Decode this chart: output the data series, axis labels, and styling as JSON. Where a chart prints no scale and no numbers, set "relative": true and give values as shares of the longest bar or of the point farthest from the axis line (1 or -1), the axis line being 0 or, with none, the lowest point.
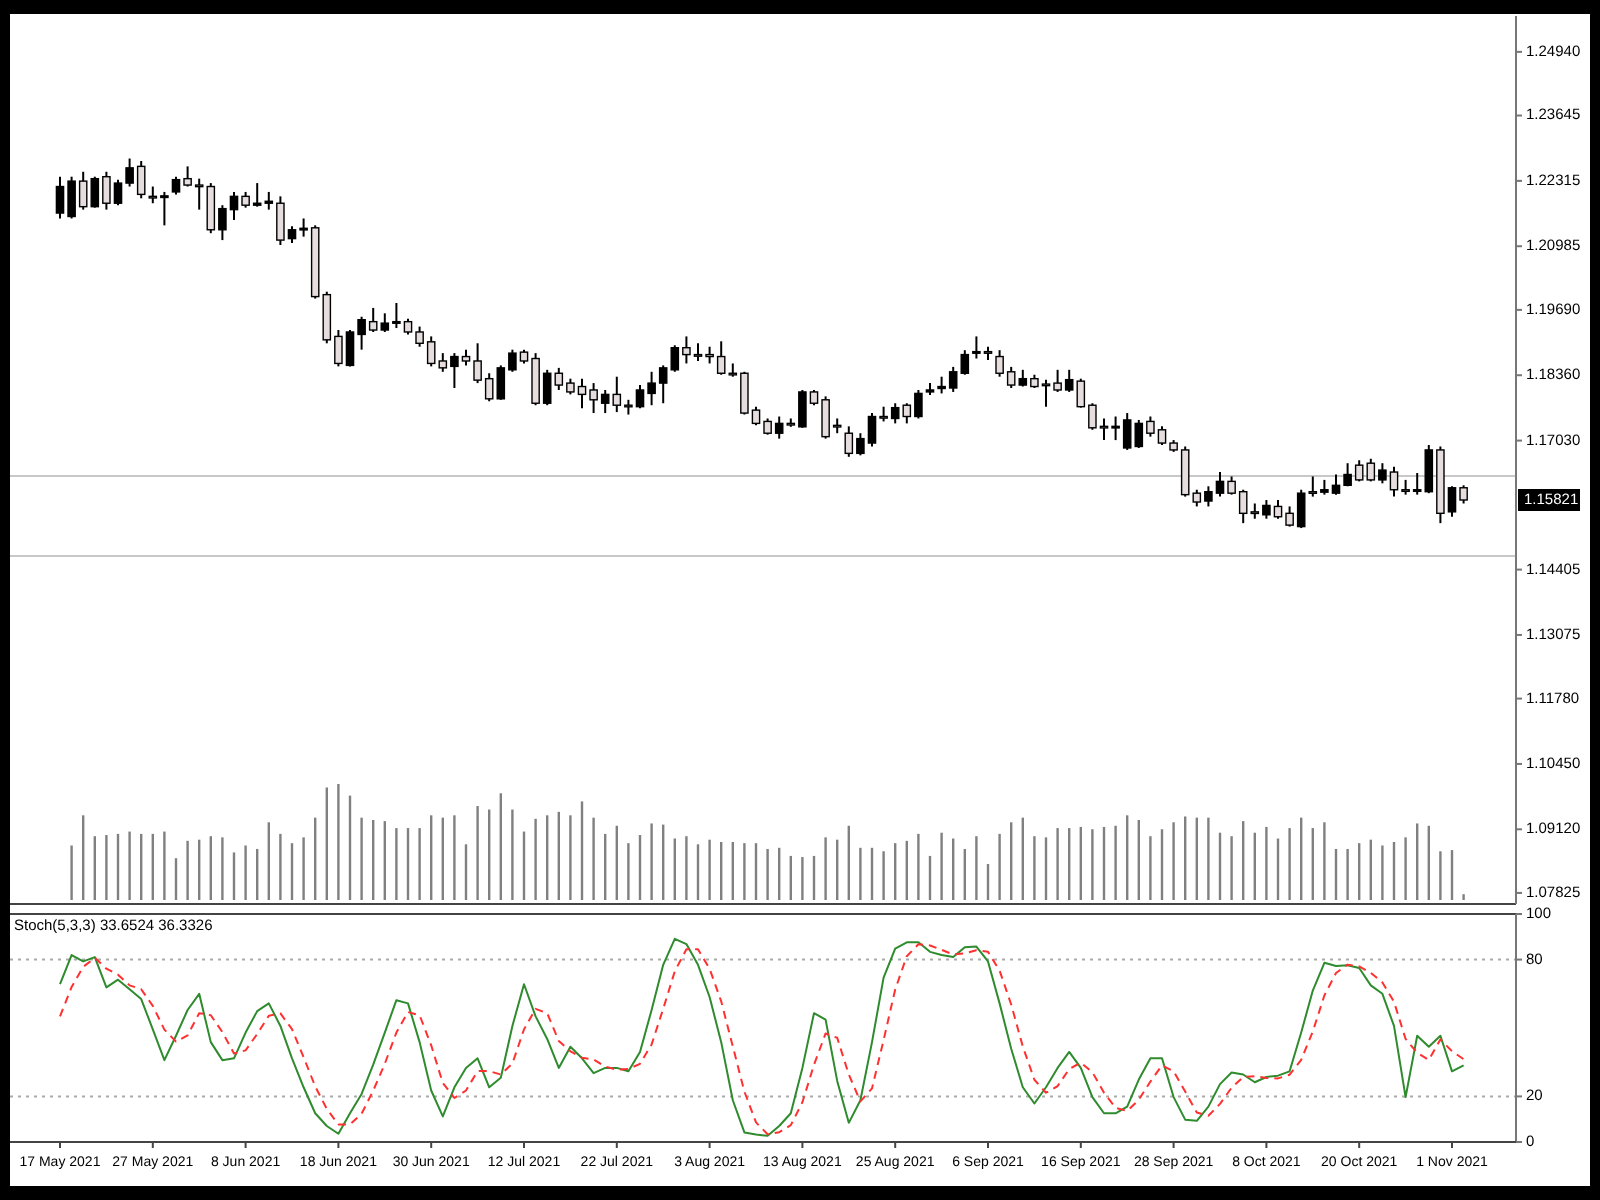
{
  "chart_data": [
    {
      "type": "candlestick",
      "tick_labels": "y",
      "categories": [
        null,
        null,
        null,
        null,
        null,
        null,
        null,
        null,
        null,
        null,
        null,
        null,
        null,
        null,
        null,
        null,
        null,
        null,
        null,
        null,
        null,
        null,
        null,
        null,
        null,
        null,
        null,
        null,
        null,
        null,
        null,
        null,
        null,
        null,
        null,
        null,
        null,
        null,
        null,
        null,
        null,
        null,
        null,
        null,
        null,
        null,
        null,
        null,
        null,
        null,
        null,
        null,
        null,
        null,
        null,
        null,
        null,
        null,
        null,
        null,
        null,
        null,
        null,
        null,
        null,
        null,
        null,
        null,
        null,
        null,
        null,
        null,
        null,
        null,
        null,
        null,
        null,
        null,
        null,
        null,
        null,
        null,
        null,
        null,
        null,
        null,
        null,
        null,
        null,
        null,
        null,
        null,
        null,
        null,
        null,
        null,
        null,
        null,
        null,
        null,
        null,
        null,
        null,
        null,
        null,
        null,
        null,
        null,
        null,
        null,
        null,
        null,
        null,
        null,
        null,
        null,
        null,
        null,
        null,
        null,
        null,
        null
      ],
      "ohlc": [
        [
          1.2166,
          1.224,
          1.2155,
          1.222
        ],
        [
          1.2159,
          1.224,
          1.2155,
          1.2231
        ],
        [
          1.2231,
          1.225,
          1.2173,
          1.2179
        ],
        [
          1.2179,
          1.224,
          1.2177,
          1.2236
        ],
        [
          1.224,
          1.225,
          1.2173,
          1.2186
        ],
        [
          1.2186,
          1.2234,
          1.2182,
          1.2227
        ],
        [
          1.2227,
          1.2277,
          1.222,
          1.2258
        ],
        [
          1.2261,
          1.2272,
          1.2196,
          1.2204
        ],
        [
          1.22,
          1.222,
          1.2186,
          1.2198
        ],
        [
          1.2198,
          1.2209,
          1.2141,
          1.2201
        ],
        [
          1.2209,
          1.224,
          1.2204,
          1.2234
        ],
        [
          1.2236,
          1.2261,
          1.222,
          1.2223
        ],
        [
          1.2223,
          1.2236,
          1.2173,
          1.222
        ],
        [
          1.222,
          1.2227,
          1.2125,
          1.2132
        ],
        [
          1.2132,
          1.2182,
          1.2111,
          1.2175
        ],
        [
          1.2173,
          1.2209,
          1.2152,
          1.22
        ],
        [
          1.22,
          1.2209,
          1.2177,
          1.2182
        ],
        [
          1.2182,
          1.2227,
          1.2179,
          1.2186
        ],
        [
          1.2186,
          1.2209,
          1.2173,
          1.219
        ],
        [
          1.2186,
          1.22,
          1.2101,
          1.2111
        ],
        [
          1.2114,
          1.2139,
          1.2105,
          1.2132
        ],
        [
          1.2132,
          1.2155,
          1.2118,
          1.2135
        ],
        [
          1.2136,
          1.2141,
          1.1992,
          1.1996
        ],
        [
          1.2,
          1.2006,
          1.1901,
          1.1908
        ],
        [
          1.1915,
          1.1928,
          1.1854,
          1.186
        ],
        [
          1.1856,
          1.1928,
          1.1854,
          1.1924
        ],
        [
          1.1919,
          1.1955,
          1.1888,
          1.1949
        ],
        [
          1.1945,
          1.1973,
          1.1924,
          1.1928
        ],
        [
          1.1928,
          1.1962,
          1.1924,
          1.1942
        ],
        [
          1.1942,
          1.1983,
          1.1932,
          1.1945
        ],
        [
          1.1945,
          1.1951,
          1.1919,
          1.1924
        ],
        [
          1.1924,
          1.1935,
          1.1894,
          1.1901
        ],
        [
          1.1904,
          1.1915,
          1.1854,
          1.186
        ],
        [
          1.1865,
          1.1881,
          1.1843,
          1.1851
        ],
        [
          1.1854,
          1.1881,
          1.181,
          1.1874
        ],
        [
          1.1874,
          1.1888,
          1.1856,
          1.1865
        ],
        [
          1.1865,
          1.1901,
          1.182,
          1.1826
        ],
        [
          1.1829,
          1.184,
          1.1783,
          1.1788
        ],
        [
          1.1788,
          1.1856,
          1.1786,
          1.1851
        ],
        [
          1.1847,
          1.1888,
          1.1843,
          1.1881
        ],
        [
          1.1883,
          1.1888,
          1.186,
          1.1865
        ],
        [
          1.187,
          1.1881,
          1.1775,
          1.1779
        ],
        [
          1.1779,
          1.1847,
          1.1775,
          1.184
        ],
        [
          1.184,
          1.1851,
          1.1806,
          1.1816
        ],
        [
          1.182,
          1.1829,
          1.1797,
          1.1802
        ],
        [
          1.1813,
          1.1829,
          1.1769,
          1.1797
        ],
        [
          1.1806,
          1.182,
          1.1759,
          1.1786
        ],
        [
          1.1779,
          1.1806,
          1.1759,
          1.1797
        ],
        [
          1.1797,
          1.1833,
          1.1761,
          1.1775
        ],
        [
          1.1775,
          1.1786,
          1.1756,
          1.1772
        ],
        [
          1.1772,
          1.1816,
          1.1769,
          1.1806
        ],
        [
          1.1799,
          1.1843,
          1.1775,
          1.182
        ],
        [
          1.182,
          1.1856,
          1.1779,
          1.1851
        ],
        [
          1.1847,
          1.1897,
          1.1843,
          1.1892
        ],
        [
          1.1892,
          1.1915,
          1.186,
          1.1878
        ],
        [
          1.1878,
          1.1901,
          1.1865,
          1.1877
        ],
        [
          1.1878,
          1.1894,
          1.186,
          1.1874
        ],
        [
          1.1874,
          1.1905,
          1.1837,
          1.184
        ],
        [
          1.184,
          1.186,
          1.1833,
          1.1839
        ],
        [
          1.184,
          1.1843,
          1.1756,
          1.1759
        ],
        [
          1.1765,
          1.1772,
          1.1734,
          1.1738
        ],
        [
          1.1742,
          1.1748,
          1.1715,
          1.1718
        ],
        [
          1.1718,
          1.1752,
          1.1707,
          1.1738
        ],
        [
          1.1738,
          1.1748,
          1.1731,
          1.1737
        ],
        [
          1.1731,
          1.1806,
          1.1729,
          1.1802
        ],
        [
          1.1802,
          1.1806,
          1.1775,
          1.1779
        ],
        [
          1.1786,
          1.1793,
          1.1707,
          1.1711
        ],
        [
          1.1734,
          1.1748,
          1.1718,
          1.1732
        ],
        [
          1.1718,
          1.1732,
          1.167,
          1.1677
        ],
        [
          1.1677,
          1.1718,
          1.1673,
          1.1707
        ],
        [
          1.1698,
          1.1759,
          1.1691,
          1.1752
        ],
        [
          1.1752,
          1.1772,
          1.1742,
          1.175
        ],
        [
          1.1748,
          1.1779,
          1.1738,
          1.177
        ],
        [
          1.1775,
          1.1779,
          1.1738,
          1.1752
        ],
        [
          1.1752,
          1.1806,
          1.1748,
          1.1799
        ],
        [
          1.1802,
          1.182,
          1.1796,
          1.1806
        ],
        [
          1.1809,
          1.1833,
          1.1799,
          1.1813
        ],
        [
          1.181,
          1.1853,
          1.1802,
          1.1843
        ],
        [
          1.184,
          1.1887,
          1.1837,
          1.1878
        ],
        [
          1.1881,
          1.1915,
          1.187,
          1.1884
        ],
        [
          1.1884,
          1.1894,
          1.1867,
          1.1881
        ],
        [
          1.1874,
          1.1887,
          1.1833,
          1.184
        ],
        [
          1.1843,
          1.1853,
          1.181,
          1.1816
        ],
        [
          1.1816,
          1.1847,
          1.1813,
          1.1829
        ],
        [
          1.1829,
          1.1837,
          1.181,
          1.1813
        ],
        [
          1.1818,
          1.1827,
          1.1772,
          1.1816
        ],
        [
          1.182,
          1.1847,
          1.1802,
          1.1806
        ],
        [
          1.1806,
          1.1847,
          1.1802,
          1.1827
        ],
        [
          1.1824,
          1.1829,
          1.177,
          1.1772
        ],
        [
          1.1775,
          1.1779,
          1.1725,
          1.1729
        ],
        [
          1.1732,
          1.1748,
          1.1704,
          1.1729
        ],
        [
          1.1729,
          1.1752,
          1.1704,
          1.1732
        ],
        [
          1.1688,
          1.1759,
          1.1684,
          1.1745
        ],
        [
          1.1691,
          1.1745,
          1.1688,
          1.1738
        ],
        [
          1.1742,
          1.1752,
          1.1711,
          1.1718
        ],
        [
          1.1725,
          1.1732,
          1.1694,
          1.1698
        ],
        [
          1.1698,
          1.1704,
          1.168,
          1.1684
        ],
        [
          1.1684,
          1.1691,
          1.1589,
          1.1593
        ],
        [
          1.1596,
          1.1603,
          1.1569,
          1.1578
        ],
        [
          1.158,
          1.161,
          1.1569,
          1.1599
        ],
        [
          1.1596,
          1.1639,
          1.1589,
          1.162
        ],
        [
          1.162,
          1.163,
          1.1593,
          1.1596
        ],
        [
          1.1599,
          1.1603,
          1.1535,
          1.1555
        ],
        [
          1.1558,
          1.1575,
          1.1544,
          1.1555
        ],
        [
          1.1552,
          1.1582,
          1.1544,
          1.1571
        ],
        [
          1.1569,
          1.1582,
          1.1544,
          1.1548
        ],
        [
          1.1555,
          1.1569,
          1.1528,
          1.1531
        ],
        [
          1.1528,
          1.1603,
          1.1525,
          1.1596
        ],
        [
          1.1599,
          1.163,
          1.1589,
          1.1598
        ],
        [
          1.1598,
          1.1623,
          1.1593,
          1.1603
        ],
        [
          1.1596,
          1.1634,
          1.1593,
          1.1612
        ],
        [
          1.1612,
          1.1657,
          1.161,
          1.1634
        ],
        [
          1.1653,
          1.1663,
          1.162,
          1.1623
        ],
        [
          1.1657,
          1.1666,
          1.162,
          1.1623
        ],
        [
          1.1623,
          1.1657,
          1.1616,
          1.1643
        ],
        [
          1.1639,
          1.165,
          1.1589,
          1.1603
        ],
        [
          1.1603,
          1.1623,
          1.1593,
          1.1601
        ],
        [
          1.1601,
          1.1637,
          1.1593,
          1.1603
        ],
        [
          1.1599,
          1.1694,
          1.1596,
          1.1684
        ],
        [
          1.1684,
          1.1691,
          1.1535,
          1.1555
        ],
        [
          1.1558,
          1.161,
          1.1548,
          1.1607
        ],
        [
          1.1607,
          1.1612,
          1.1575,
          1.15821
        ]
      ],
      "ylim": [
        1.076,
        1.2567
      ],
      "yticks": [
        {
          "value": 1.2494,
          "label": "1.24940"
        },
        {
          "value": 1.23645,
          "label": "1.23645"
        },
        {
          "value": 1.22315,
          "label": "1.22315"
        },
        {
          "value": 1.20985,
          "label": "1.20985"
        },
        {
          "value": 1.1969,
          "label": "1.19690"
        },
        {
          "value": 1.1836,
          "label": "1.18360"
        },
        {
          "value": 1.1703,
          "label": "1.17030"
        },
        {
          "value": 1.14405,
          "label": "1.14405"
        },
        {
          "value": 1.13075,
          "label": "1.13075"
        },
        {
          "value": 1.1178,
          "label": "1.11780"
        },
        {
          "value": 1.1045,
          "label": "1.10450"
        },
        {
          "value": 1.0912,
          "label": "1.09120"
        },
        {
          "value": 1.07825,
          "label": "1.07825"
        }
      ],
      "ref_lines": [
        {
          "axis": "y",
          "value": 1.1631,
          "color": "#c8c8c8"
        },
        {
          "axis": "y",
          "value": 1.1468,
          "color": "#c8c8c8"
        }
      ],
      "annotations": [
        "1.15821"
      ]
    },
    {
      "type": "bar",
      "relative": true,
      "tick_labels": false,
      "color": "#808080",
      "categories": [
        null,
        null,
        null,
        null,
        null,
        null,
        null,
        null,
        null,
        null,
        null,
        null,
        null,
        null,
        null,
        null,
        null,
        null,
        null,
        null,
        null,
        null,
        null,
        null,
        null,
        null,
        null,
        null,
        null,
        null,
        null,
        null,
        null,
        null,
        null,
        null,
        null,
        null,
        null,
        null,
        null,
        null,
        null,
        null,
        null,
        null,
        null,
        null,
        null,
        null,
        null,
        null,
        null,
        null,
        null,
        null,
        null,
        null,
        null,
        null,
        null,
        null,
        null,
        null,
        null,
        null,
        null,
        null,
        null,
        null,
        null,
        null,
        null,
        null,
        null,
        null,
        null,
        null,
        null,
        null,
        null,
        null,
        null,
        null,
        null,
        null,
        null,
        null,
        null,
        null,
        null,
        null,
        null,
        null,
        null,
        null,
        null,
        null,
        null,
        null,
        null,
        null,
        null,
        null,
        null,
        null,
        null,
        null,
        null,
        null,
        null,
        null,
        null,
        null,
        null,
        null,
        null,
        null,
        null,
        null,
        null,
        null
      ],
      "values": [
        null,
        0.47,
        0.73,
        0.55,
        0.56,
        0.57,
        0.59,
        0.57,
        0.57,
        0.59,
        0.36,
        0.51,
        0.52,
        0.55,
        0.54,
        0.41,
        0.47,
        0.44,
        0.67,
        0.57,
        0.49,
        0.54,
        0.71,
        0.97,
        1,
        0.9,
        0.71,
        0.69,
        0.68,
        0.62,
        0.62,
        0.62,
        0.73,
        0.71,
        0.73,
        0.48,
        0.81,
        0.78,
        0.92,
        0.78,
        0.59,
        0.7,
        0.73,
        0.76,
        0.73,
        0.85,
        0.71,
        0.57,
        0.64,
        0.49,
        0.56,
        0.66,
        0.65,
        0.53,
        0.55,
        0.48,
        0.52,
        0.5,
        0.5,
        0.49,
        0.49,
        0.44,
        0.45,
        0.38,
        0.37,
        0.38,
        0.54,
        0.52,
        0.64,
        0.45,
        0.45,
        0.42,
        0.49,
        0.51,
        0.57,
        0.38,
        0.58,
        0.53,
        0.44,
        0.55,
        0.31,
        0.57,
        0.67,
        0.71,
        0.55,
        0.54,
        0.62,
        0.62,
        0.63,
        0.61,
        0.63,
        0.64,
        0.73,
        0.69,
        0.55,
        0.61,
        0.67,
        0.72,
        0.71,
        0.71,
        0.58,
        0.55,
        0.68,
        0.58,
        0.63,
        0.53,
        0.62,
        0.71,
        0.62,
        0.67,
        0.44,
        0.44,
        0.49,
        0.52,
        0.47,
        0.5,
        0.54,
        0.66,
        0.64,
        0.42,
        0.43,
        0.05
      ]
    },
    {
      "type": "line",
      "title": "Stoch(5,3,3) 33.6524 36.3326",
      "categories": [
        "17 May 2021",
        null,
        null,
        null,
        null,
        null,
        null,
        null,
        "27 May 2021",
        null,
        null,
        null,
        null,
        null,
        null,
        null,
        "8 Jun 2021",
        null,
        null,
        null,
        null,
        null,
        null,
        null,
        "18 Jun 2021",
        null,
        null,
        null,
        null,
        null,
        null,
        null,
        "30 Jun 2021",
        null,
        null,
        null,
        null,
        null,
        null,
        null,
        "12 Jul 2021",
        null,
        null,
        null,
        null,
        null,
        null,
        null,
        "22 Jul 2021",
        null,
        null,
        null,
        null,
        null,
        null,
        null,
        "3 Aug 2021",
        null,
        null,
        null,
        null,
        null,
        null,
        null,
        "13 Aug 2021",
        null,
        null,
        null,
        null,
        null,
        null,
        null,
        "25 Aug 2021",
        null,
        null,
        null,
        null,
        null,
        null,
        null,
        "6 Sep 2021",
        null,
        null,
        null,
        null,
        null,
        null,
        null,
        "16 Sep 2021",
        null,
        null,
        null,
        null,
        null,
        null,
        null,
        "28 Sep 2021",
        null,
        null,
        null,
        null,
        null,
        null,
        null,
        "8 Oct 2021",
        null,
        null,
        null,
        null,
        null,
        null,
        null,
        "20 Oct 2021",
        null,
        null,
        null,
        null,
        null,
        null,
        null,
        "1 Nov 2021",
        null
      ],
      "series": [
        {
          "color": "#2e8b2e",
          "line_style": "solid",
          "values": [
            69.2,
            82,
            79.2,
            81.1,
            67.8,
            71.2,
            67,
            62.7,
            49.4,
            35.9,
            46.6,
            57.9,
            65,
            43.8,
            35.9,
            36.7,
            48,
            57.4,
            60.8,
            50.9,
            36.7,
            24,
            12.6,
            7,
            3.6,
            12.6,
            21.1,
            33.9,
            48,
            62.2,
            60.8,
            43.8,
            22.6,
            11.2,
            24,
            32.5,
            36.7,
            24,
            28.2,
            50.9,
            69.2,
            55.1,
            45.2,
            32.5,
            41.8,
            36.7,
            30.2,
            32.5,
            32.5,
            31,
            39.5,
            57.9,
            77.7,
            89.1,
            86.8,
            77.7,
            63.6,
            43.8,
            18.3,
            4.2,
            3.3,
            2.7,
            7,
            12.6,
            32.5,
            56.5,
            53.7,
            26.8,
            8.4,
            18.3,
            43.8,
            72.1,
            84.8,
            87.6,
            87.6,
            83.4,
            82,
            81.1,
            85.4,
            85.7,
            79.2,
            60.8,
            40.9,
            24,
            16.9,
            24,
            32.5,
            39.5,
            32.5,
            19.7,
            12.6,
            12.6,
            15.5,
            27.4,
            36.7,
            36.7,
            19.7,
            9.8,
            9.3,
            15.5,
            25.4,
            30.5,
            29.6,
            26.2,
            28.5,
            29.1,
            31,
            48,
            66.4,
            78.6,
            77.2,
            77.5,
            76.3,
            68.7,
            65,
            50.9,
            19.7,
            46.6,
            41.8,
            46.6,
            31,
            33.6524
          ]
        },
        {
          "color": "#ff3030",
          "line_style": "dashed",
          "values": [
            55.1,
            68,
            76.8,
            80.8,
            76,
            73.4,
            68.7,
            67,
            59.7,
            49.3,
            44,
            46.8,
            56.5,
            55.6,
            48.2,
            38.8,
            40.2,
            47.4,
            55.4,
            56.4,
            49.5,
            37.2,
            24.4,
            14.5,
            7.7,
            7.7,
            12.4,
            22.5,
            34.3,
            48,
            57,
            55.6,
            42.4,
            25.9,
            19.3,
            22.6,
            31.1,
            31.1,
            29.6,
            34.4,
            49.4,
            58.4,
            56.5,
            44.3,
            39.8,
            37,
            36.2,
            33.1,
            31.7,
            32,
            34.3,
            42.8,
            58.4,
            74.9,
            84.5,
            84.5,
            76,
            61.7,
            41.9,
            22.1,
            8.6,
            3.4,
            4.3,
            7.4,
            17.4,
            33.9,
            47.6,
            45.7,
            29.6,
            17.8,
            23.5,
            44.7,
            66.9,
            81.5,
            86.7,
            86.2,
            84.3,
            82.2,
            82.8,
            84.1,
            83.4,
            75.2,
            60.3,
            41.9,
            27.3,
            21.6,
            24.5,
            32,
            34.8,
            30.6,
            21.6,
            15,
            13.6,
            18.5,
            26.5,
            33.6,
            31,
            22.1,
            12.9,
            11.5,
            16.7,
            23.8,
            28.5,
            28.8,
            28.1,
            27.9,
            29.5,
            36,
            48.5,
            64.3,
            74.1,
            77.8,
            77,
            74.2,
            70,
            61.5,
            45.2,
            39.1,
            36,
            45,
            39.8,
            36.3326
          ]
        }
      ],
      "ylim": [
        0,
        100
      ],
      "yticks": [
        0,
        20,
        80,
        100
      ],
      "ref_lines": [
        {
          "axis": "y",
          "value": 20,
          "color": "#aaaaaa",
          "line_style": "dotted"
        },
        {
          "axis": "y",
          "value": 80,
          "color": "#aaaaaa",
          "line_style": "dotted"
        }
      ]
    }
  ]
}
